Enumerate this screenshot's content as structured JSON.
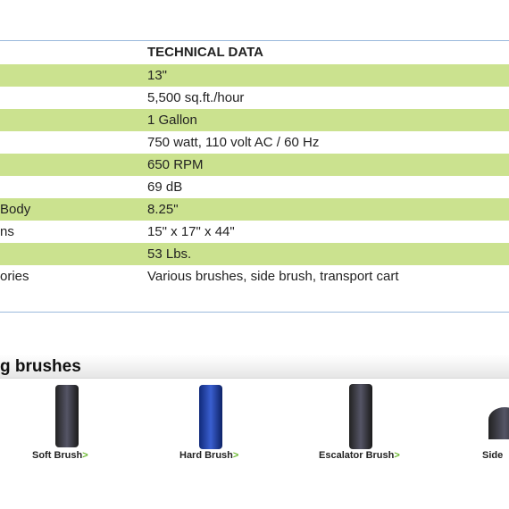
{
  "table": {
    "header": "TECHNICAL DATA",
    "rows": [
      {
        "value": "13\""
      },
      {
        "value": "5,500 sq.ft./hour"
      },
      {
        "value": "1 Gallon"
      },
      {
        "value": "750 watt, 110 volt AC / 60 Hz"
      },
      {
        "value": "650 RPM"
      },
      {
        "value": "69 dB"
      },
      {
        "label": "Body",
        "value": "8.25\""
      },
      {
        "label": "ns",
        "value": "15\" x 17\" x 44\""
      },
      {
        "value": "53 Lbs."
      },
      {
        "label": "ories",
        "value": "Various brushes, side brush, transport cart"
      }
    ]
  },
  "brushes": {
    "title": "g brushes",
    "items": [
      {
        "name": "Soft Brush",
        "link": ">"
      },
      {
        "name": "Hard Brush",
        "link": ">"
      },
      {
        "name": "Escalator Brush",
        "link": ">"
      },
      {
        "name": "Side "
      }
    ]
  }
}
